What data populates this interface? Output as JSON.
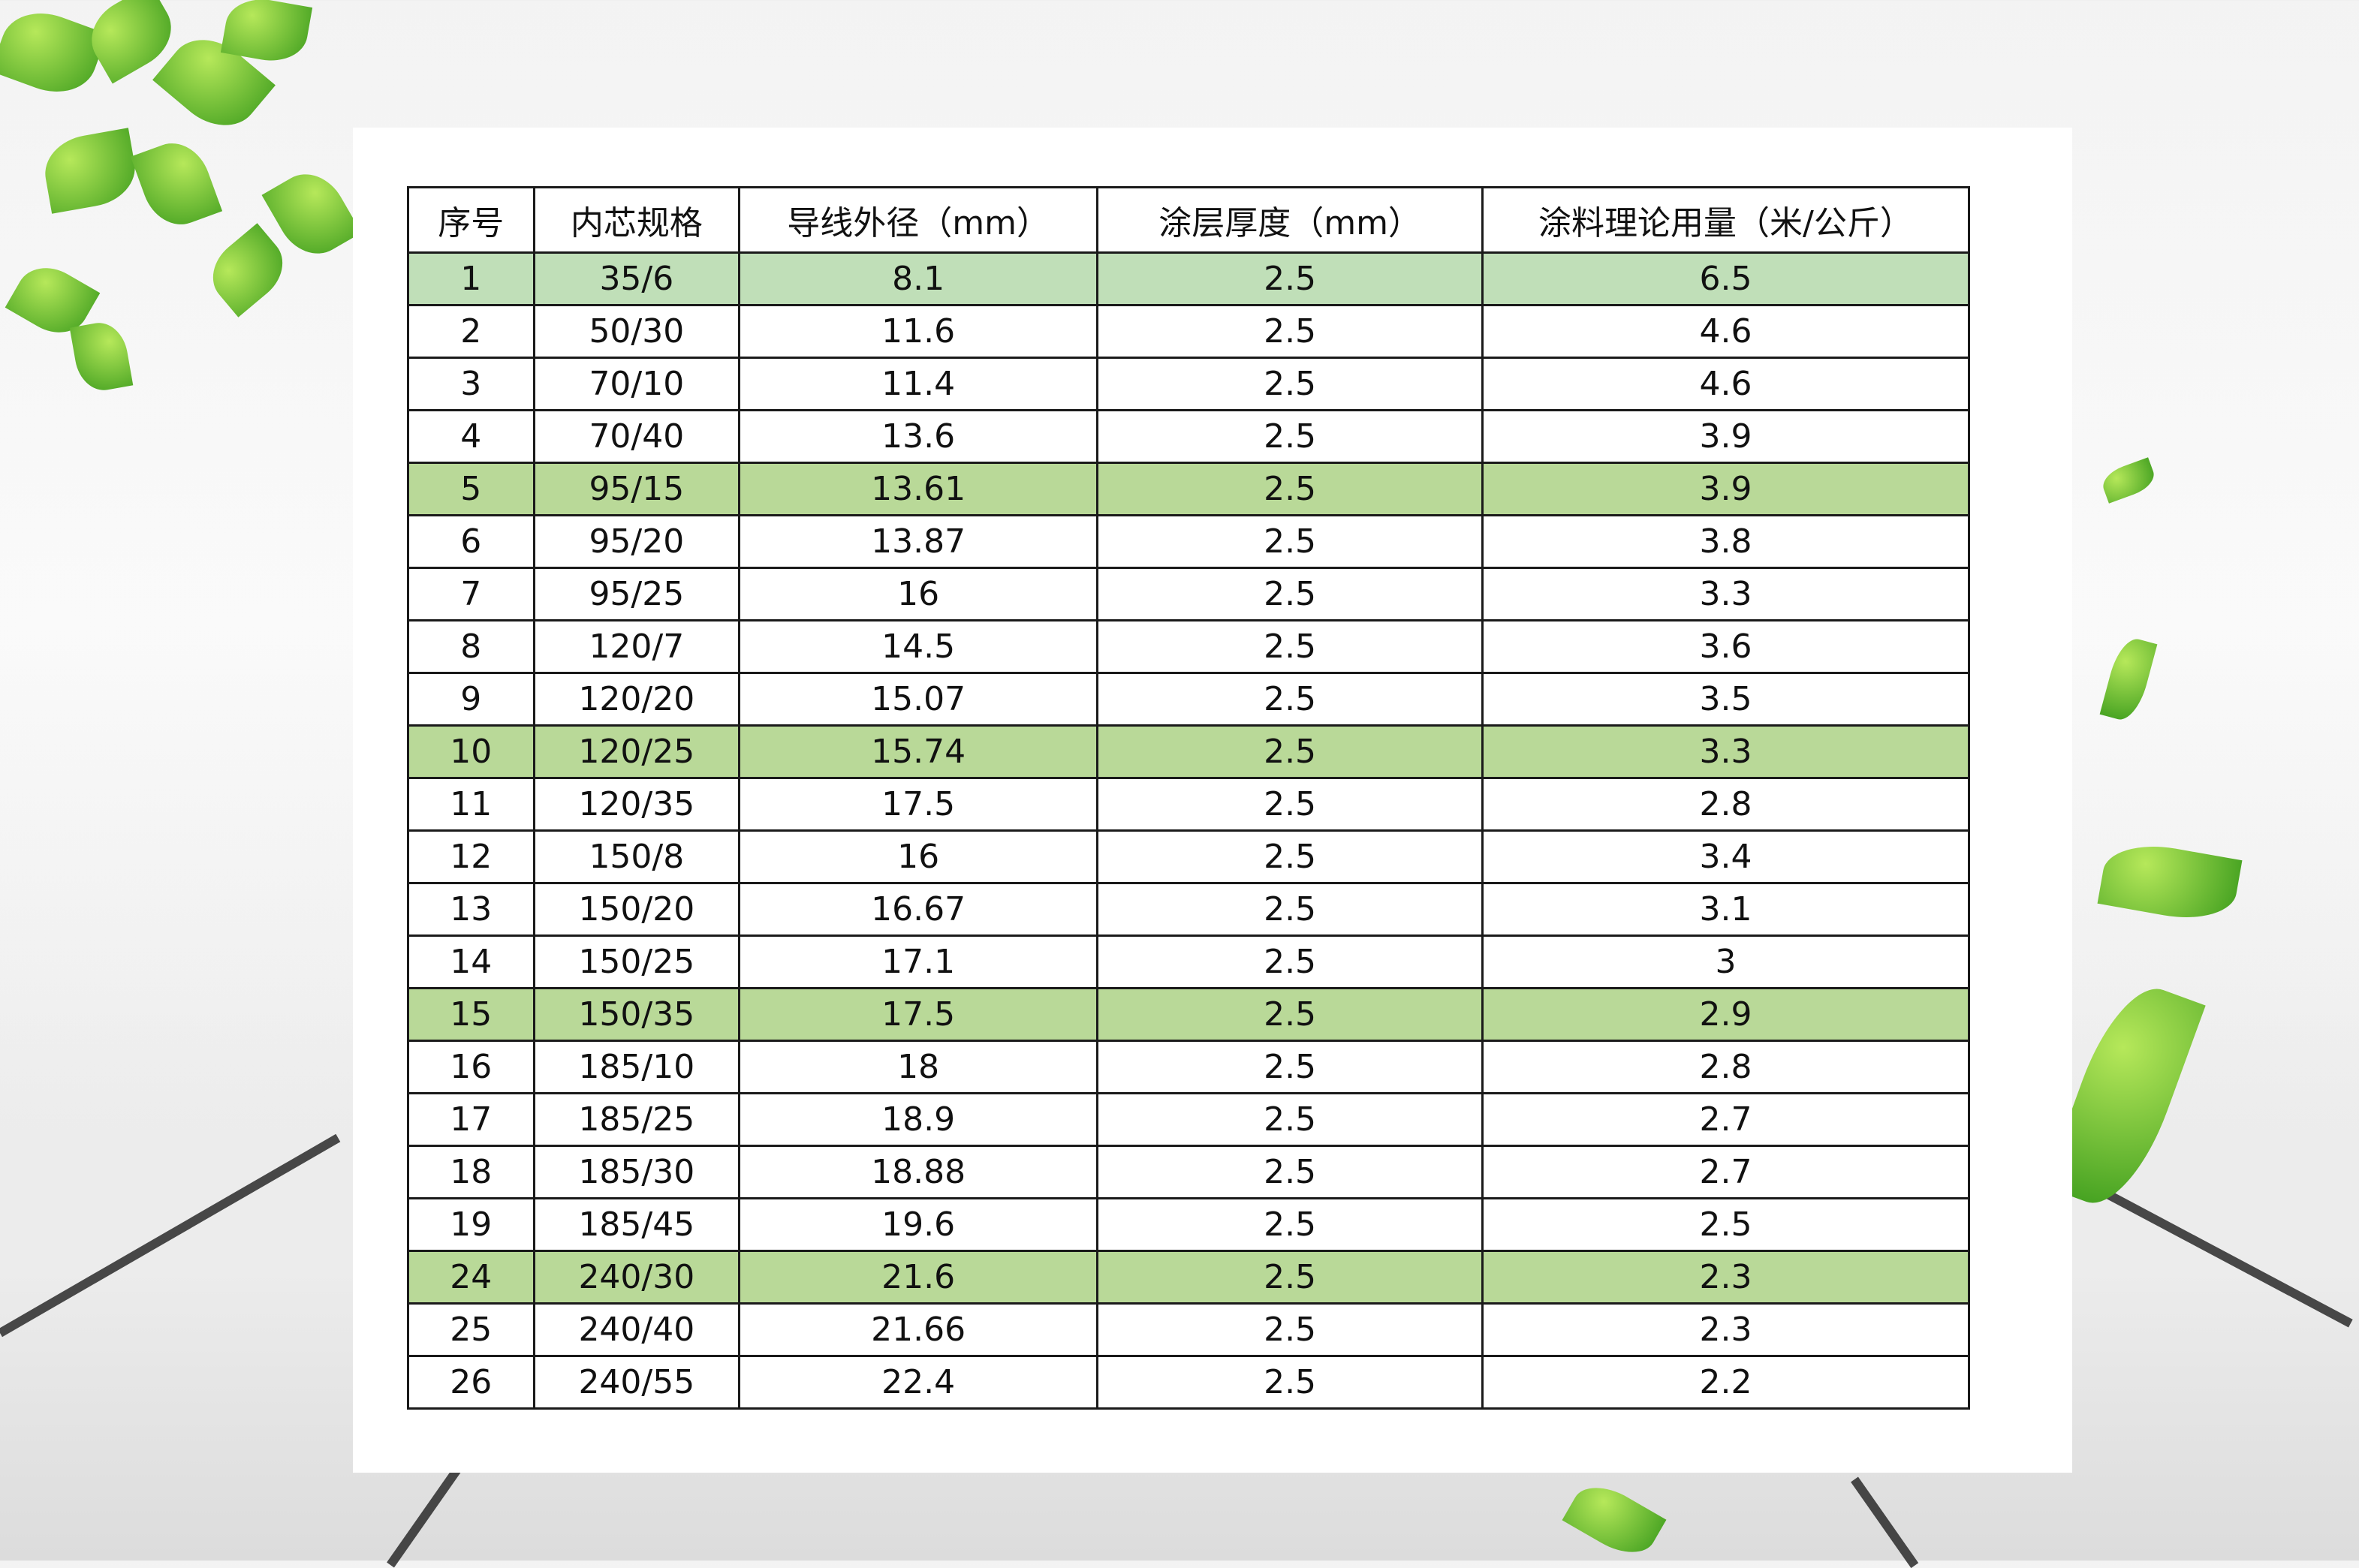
{
  "colors": {
    "highlight": "#b9d998",
    "highlight_first": "#c0dfb8",
    "border": "#1a1a1a",
    "leaf": "#5cb82c"
  },
  "table": {
    "headers": [
      "序号",
      "内芯规格",
      "导线外径（mm）",
      "涂层厚度（mm）",
      "涂料理论用量（米/公斤）"
    ],
    "rows": [
      {
        "cells": [
          "1",
          "35/6",
          "8.1",
          "2.5",
          "6.5"
        ],
        "highlight": true
      },
      {
        "cells": [
          "2",
          "50/30",
          "11.6",
          "2.5",
          "4.6"
        ],
        "highlight": false
      },
      {
        "cells": [
          "3",
          "70/10",
          "11.4",
          "2.5",
          "4.6"
        ],
        "highlight": false
      },
      {
        "cells": [
          "4",
          "70/40",
          "13.6",
          "2.5",
          "3.9"
        ],
        "highlight": false
      },
      {
        "cells": [
          "5",
          "95/15",
          "13.61",
          "2.5",
          "3.9"
        ],
        "highlight": true
      },
      {
        "cells": [
          "6",
          "95/20",
          "13.87",
          "2.5",
          "3.8"
        ],
        "highlight": false
      },
      {
        "cells": [
          "7",
          "95/25",
          "16",
          "2.5",
          "3.3"
        ],
        "highlight": false
      },
      {
        "cells": [
          "8",
          "120/7",
          "14.5",
          "2.5",
          "3.6"
        ],
        "highlight": false
      },
      {
        "cells": [
          "9",
          "120/20",
          "15.07",
          "2.5",
          "3.5"
        ],
        "highlight": false
      },
      {
        "cells": [
          "10",
          "120/25",
          "15.74",
          "2.5",
          "3.3"
        ],
        "highlight": true
      },
      {
        "cells": [
          "11",
          "120/35",
          "17.5",
          "2.5",
          "2.8"
        ],
        "highlight": false
      },
      {
        "cells": [
          "12",
          "150/8",
          "16",
          "2.5",
          "3.4"
        ],
        "highlight": false
      },
      {
        "cells": [
          "13",
          "150/20",
          "16.67",
          "2.5",
          "3.1"
        ],
        "highlight": false
      },
      {
        "cells": [
          "14",
          "150/25",
          "17.1",
          "2.5",
          "3"
        ],
        "highlight": false
      },
      {
        "cells": [
          "15",
          "150/35",
          "17.5",
          "2.5",
          "2.9"
        ],
        "highlight": true
      },
      {
        "cells": [
          "16",
          "185/10",
          "18",
          "2.5",
          "2.8"
        ],
        "highlight": false
      },
      {
        "cells": [
          "17",
          "185/25",
          "18.9",
          "2.5",
          "2.7"
        ],
        "highlight": false
      },
      {
        "cells": [
          "18",
          "185/30",
          "18.88",
          "2.5",
          "2.7"
        ],
        "highlight": false
      },
      {
        "cells": [
          "19",
          "185/45",
          "19.6",
          "2.5",
          "2.5"
        ],
        "highlight": false
      },
      {
        "cells": [
          "24",
          "240/30",
          "21.6",
          "2.5",
          "2.3"
        ],
        "highlight": true
      },
      {
        "cells": [
          "25",
          "240/40",
          "21.66",
          "2.5",
          "2.3"
        ],
        "highlight": false
      },
      {
        "cells": [
          "26",
          "240/55",
          "22.4",
          "2.5",
          "2.2"
        ],
        "highlight": false
      }
    ]
  }
}
